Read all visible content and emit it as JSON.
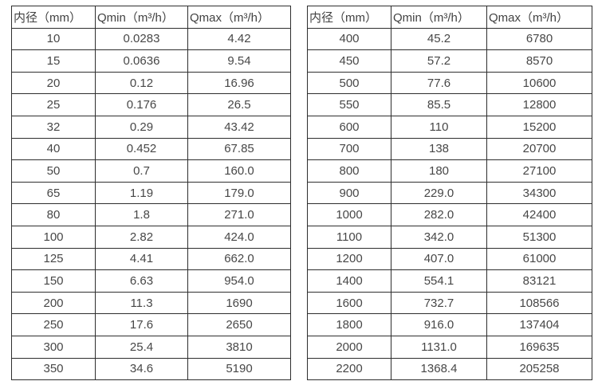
{
  "colors": {
    "background": "#ffffff",
    "border": "#2e2e2e",
    "text": "#474747"
  },
  "chart_data": [
    {
      "type": "table",
      "columns": [
        "内径（mm）",
        "Qmin（m³/h）",
        "Qmax（m³/h）"
      ],
      "rows": [
        [
          "10",
          "0.0283",
          "4.42"
        ],
        [
          "15",
          "0.0636",
          "9.54"
        ],
        [
          "20",
          "0.12",
          "16.96"
        ],
        [
          "25",
          "0.176",
          "26.5"
        ],
        [
          "32",
          "0.29",
          "43.42"
        ],
        [
          "40",
          "0.452",
          "67.85"
        ],
        [
          "50",
          "0.7",
          "160.0"
        ],
        [
          "65",
          "1.19",
          "179.0"
        ],
        [
          "80",
          "1.8",
          "271.0"
        ],
        [
          "100",
          "2.82",
          "424.0"
        ],
        [
          "125",
          "4.41",
          "662.0"
        ],
        [
          "150",
          "6.63",
          "954.0"
        ],
        [
          "200",
          "11.3",
          "1690"
        ],
        [
          "250",
          "17.6",
          "2650"
        ],
        [
          "300",
          "25.4",
          "3810"
        ],
        [
          "350",
          "34.6",
          "5190"
        ]
      ]
    },
    {
      "type": "table",
      "columns": [
        "内径（mm）",
        "Qmin（m³/h）",
        "Qmax（m³/h）"
      ],
      "rows": [
        [
          "400",
          "45.2",
          "6780"
        ],
        [
          "450",
          "57.2",
          "8570"
        ],
        [
          "500",
          "77.6",
          "10600"
        ],
        [
          "550",
          "85.5",
          "12800"
        ],
        [
          "600",
          "110",
          "15200"
        ],
        [
          "700",
          "138",
          "20700"
        ],
        [
          "800",
          "180",
          "27100"
        ],
        [
          "900",
          "229.0",
          "34300"
        ],
        [
          "1000",
          "282.0",
          "42400"
        ],
        [
          "1100",
          "342.0",
          "51300"
        ],
        [
          "1200",
          "407.0",
          "61000"
        ],
        [
          "1400",
          "554.1",
          "83121"
        ],
        [
          "1600",
          "732.7",
          "108566"
        ],
        [
          "1800",
          "916.0",
          "137404"
        ],
        [
          "2000",
          "1131.0",
          "169635"
        ],
        [
          "2200",
          "1368.4",
          "205258"
        ]
      ]
    }
  ]
}
